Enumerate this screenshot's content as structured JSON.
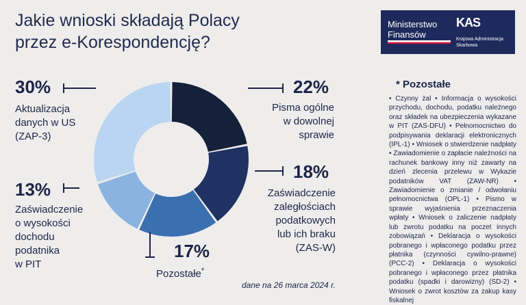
{
  "title": [
    "Jakie wnioski składają Polacy",
    "przez e-Korespondencję?"
  ],
  "logo": {
    "ministry_line1": "Ministerstwo",
    "ministry_line2": "Finansów",
    "kas_mark": "KAS",
    "kas_line1": "Krajowa Administracja",
    "kas_line2": "Skarbowa"
  },
  "colors": {
    "background": "#eeedec",
    "text": "#1c2447",
    "segments": [
      "#152039",
      "#1f3262",
      "#3a6fb0",
      "#8ab3e1",
      "#b9d5f1"
    ]
  },
  "chart_data": {
    "type": "pie",
    "donut": true,
    "slices": [
      {
        "label": "Pisma ogólne w dowolnej sprawie",
        "value": 22,
        "display": "22%"
      },
      {
        "label": "Zaświadczenie zaległościach podatkowych lub ich braku (ZAS-W)",
        "value": 18,
        "display": "18%"
      },
      {
        "label": "Pozostałe*",
        "value": 17,
        "display": "17%"
      },
      {
        "label": "Zaświadczenie o wysokości dochodu podatnika w PIT",
        "value": 13,
        "display": "13%"
      },
      {
        "label": "Aktualizacja danych w US (ZAP-3)",
        "value": 30,
        "display": "30%"
      }
    ]
  },
  "callouts": {
    "aktualizacja": {
      "pct": "30%",
      "lines": [
        "Aktualizacja",
        "danych w US",
        "(ZAP-3)"
      ]
    },
    "pisma": {
      "pct": "22%",
      "lines": [
        "Pisma ogólne",
        "w dowolnej",
        "sprawie"
      ]
    },
    "zasw": {
      "pct": "18%",
      "lines": [
        "Zaświadczenie",
        "zaległościach",
        "podatkowych",
        "lub ich braku",
        "(ZAS-W)"
      ]
    },
    "dochod": {
      "pct": "13%",
      "lines": [
        "Zaświadczenie",
        "o wysokości",
        "dochodu",
        "podatnika",
        "w PIT"
      ]
    },
    "pozostale": {
      "pct": "17%",
      "label": "Pozostałe",
      "mark": "*"
    }
  },
  "note": "dane na 26 marca 2024 r.",
  "side": {
    "heading": "*  Pozostałe",
    "text": "• Czynny żal • Informacja o wysokości przychodu, dochodu, podatku należnego oraz składek na ubezpieczenia wykazane w PIT (ZAS-DFU) • Pełnomocnictwo do podpisywania deklaracji elektronicznych (IPL-1) • Wniosek o stwierdzenie nadpłaty • Zawiadomienie o zapłacie należności na rachunek bankowy inny niż zawarty na dzień zlecenia przelewu w Wykazie podatników VAT (ZAW-NR) • Zawiadomienie o zmianie / odwołaniu pełnomocnictwa (OPL-1) • Pismo w sprawie wyjaśnienia przeznaczenia wpłaty • Wniosek o zaliczenie nadpłaty lub zwrotu podatku na poczet innych zobowiązań • Deklaracja o wysokości pobranego i wpłaconego podatku przez płatnika (czynności cywilno-prawne) (PCC-2) • Deklaracja o wysokości pobranego i wpłaconego przez płatnika podatku (spadki i darowizny) (SD-2) • Wniosek o zwrot kosztów za zakup kasy fiskalnej"
  }
}
